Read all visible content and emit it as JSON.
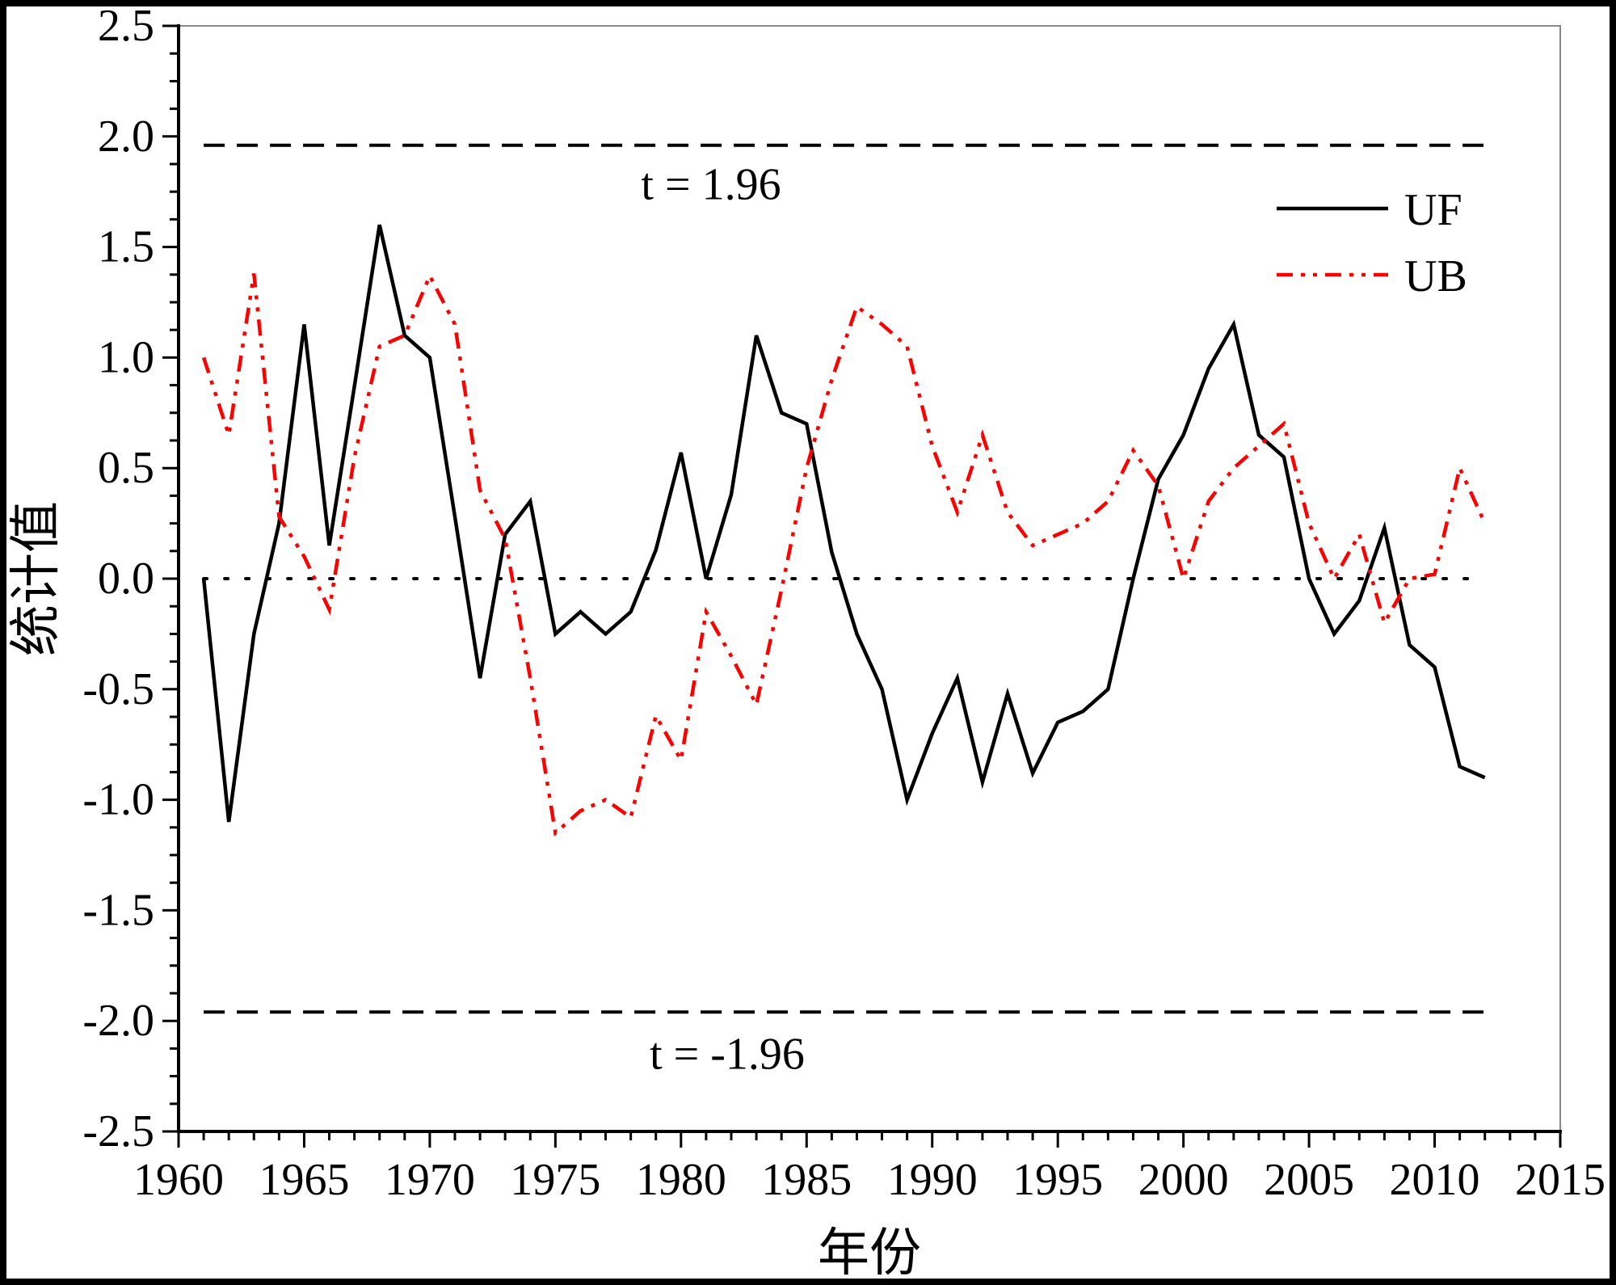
{
  "chart_data": {
    "type": "line",
    "title": "",
    "xlabel": "年份",
    "ylabel": "统计值",
    "xlim": [
      1960,
      2015
    ],
    "ylim": [
      -2.5,
      2.5
    ],
    "xticks": [
      1960,
      1965,
      1970,
      1975,
      1980,
      1985,
      1990,
      1995,
      2000,
      2005,
      2010,
      2015
    ],
    "yticks": [
      "2.5",
      "2.0",
      "1.5",
      "1.0",
      "0.5",
      "0.0",
      "-0.5",
      "-1.0",
      "-1.5",
      "-2.0",
      "-2.5"
    ],
    "legend_position": "top-right",
    "x": [
      1961,
      1962,
      1963,
      1964,
      1965,
      1966,
      1967,
      1968,
      1969,
      1970,
      1971,
      1972,
      1973,
      1974,
      1975,
      1976,
      1977,
      1978,
      1979,
      1980,
      1981,
      1982,
      1983,
      1984,
      1985,
      1986,
      1987,
      1988,
      1989,
      1990,
      1991,
      1992,
      1993,
      1994,
      1995,
      1996,
      1997,
      1998,
      1999,
      2000,
      2001,
      2002,
      2003,
      2004,
      2005,
      2006,
      2007,
      2008,
      2009,
      2010,
      2011,
      2012
    ],
    "series": [
      {
        "name": "UF",
        "color": "#000000",
        "style": "solid",
        "values": [
          0.0,
          -1.1,
          -0.25,
          0.25,
          1.15,
          0.15,
          0.87,
          1.6,
          1.1,
          1.0,
          0.28,
          -0.45,
          0.2,
          0.35,
          -0.25,
          -0.15,
          -0.25,
          -0.15,
          0.13,
          0.57,
          0.0,
          0.38,
          1.1,
          0.75,
          0.7,
          0.12,
          -0.25,
          -0.5,
          -1.0,
          -0.7,
          -0.45,
          -0.92,
          -0.52,
          -0.88,
          -0.65,
          -0.6,
          -0.5,
          0.0,
          0.45,
          0.65,
          0.95,
          1.15,
          0.65,
          0.55,
          0.0,
          -0.25,
          -0.1,
          0.23,
          -0.3,
          -0.4,
          -0.85,
          -0.9
        ]
      },
      {
        "name": "UB",
        "color": "#ff0000",
        "style": "dash-dot-dot",
        "values": [
          1.0,
          0.65,
          1.38,
          0.28,
          0.1,
          -0.14,
          0.55,
          1.05,
          1.1,
          1.37,
          1.15,
          0.4,
          0.18,
          -0.45,
          -1.15,
          -1.05,
          -1.0,
          -1.08,
          -0.62,
          -0.82,
          -0.15,
          -0.35,
          -0.57,
          -0.05,
          0.5,
          0.9,
          1.23,
          1.15,
          1.05,
          0.6,
          0.3,
          0.65,
          0.3,
          0.15,
          0.2,
          0.25,
          0.35,
          0.58,
          0.42,
          0.0,
          0.35,
          0.5,
          0.6,
          0.7,
          0.25,
          0.0,
          0.2,
          -0.2,
          0.0,
          0.02,
          0.5,
          0.25
        ]
      }
    ],
    "reference_lines": [
      {
        "value": 1.96,
        "label": "t = 1.96",
        "style": "dashed"
      },
      {
        "value": -1.96,
        "label": "t = -1.96",
        "style": "dashed"
      },
      {
        "value": 0,
        "label": "",
        "style": "dotted"
      }
    ]
  }
}
